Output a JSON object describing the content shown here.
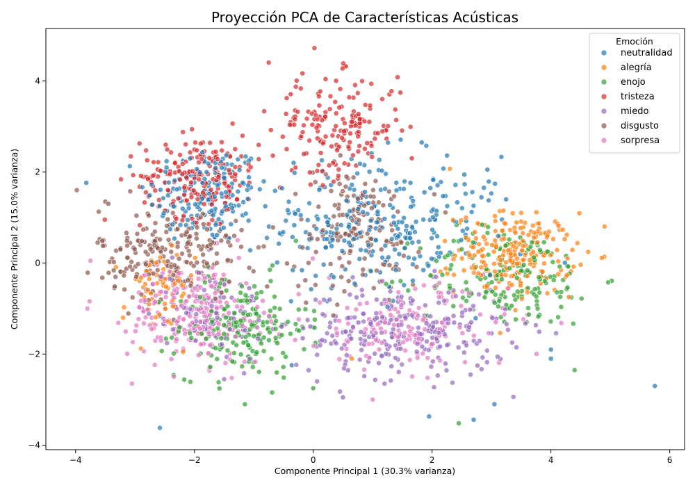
{
  "chart_data": {
    "type": "scatter",
    "title": "Proyección PCA de Características Acústicas",
    "xlabel": "Componente Principal 1 (30.3% varianza)",
    "ylabel": "Componente Principal 2 (15.0% varianza)",
    "xlim": [
      -4.5,
      6.25
    ],
    "ylim": [
      -4.1,
      5.15
    ],
    "xticks": [
      -4,
      -2,
      0,
      2,
      4,
      6
    ],
    "yticks": [
      -4,
      -2,
      0,
      2,
      4
    ],
    "xtick_labels": [
      "−4",
      "−2",
      "0",
      "2",
      "4",
      "6"
    ],
    "ytick_labels": [
      "−4",
      "−2",
      "0",
      "2",
      "4"
    ],
    "grid": false,
    "legend": {
      "title": "Emoción",
      "position": "top-right"
    },
    "marker_alpha": 0.7,
    "series": [
      {
        "name": "neutralidad",
        "color": "#1f77b4",
        "clusters": [
          {
            "cx": -1.8,
            "cy": 1.5,
            "sx": 0.5,
            "sy": 0.55,
            "n": 170
          },
          {
            "cx": 0.8,
            "cy": 0.9,
            "sx": 0.75,
            "sy": 0.75,
            "n": 190
          },
          {
            "cx": 2.0,
            "cy": 0.8,
            "sx": 0.8,
            "sy": 0.7,
            "n": 80
          }
        ],
        "points": [
          [
            5.75,
            -2.7
          ],
          [
            -2.58,
            -3.62
          ],
          [
            1.95,
            -3.37
          ],
          [
            2.7,
            -3.44
          ],
          [
            3.05,
            -3.1
          ],
          [
            4.0,
            -1.9
          ],
          [
            4.0,
            -2.1
          ]
        ]
      },
      {
        "name": "alegría",
        "color": "#ff7f0e",
        "clusters": [
          {
            "cx": 3.4,
            "cy": 0.2,
            "sx": 0.5,
            "sy": 0.45,
            "n": 230
          },
          {
            "cx": -2.6,
            "cy": -0.6,
            "sx": 0.3,
            "sy": 0.45,
            "n": 60
          }
        ],
        "points": [
          [
            2.3,
            2.07
          ],
          [
            -3.2,
            -1.2
          ],
          [
            -2.9,
            -1.88
          ],
          [
            0.65,
            -2.1
          ]
        ]
      },
      {
        "name": "enojo",
        "color": "#2ca02c",
        "clusters": [
          {
            "cx": -1.2,
            "cy": -1.4,
            "sx": 0.55,
            "sy": 0.55,
            "n": 190
          },
          {
            "cx": 3.3,
            "cy": -0.3,
            "sx": 0.75,
            "sy": 0.55,
            "n": 170
          }
        ],
        "points": [
          [
            2.45,
            -3.52
          ],
          [
            4.4,
            -2.35
          ],
          [
            -1.15,
            -3.1
          ],
          [
            0.0,
            -2.75
          ]
        ]
      },
      {
        "name": "tristeza",
        "color": "#d62728",
        "clusters": [
          {
            "cx": -1.9,
            "cy": 1.9,
            "sx": 0.5,
            "sy": 0.45,
            "n": 200
          },
          {
            "cx": 0.4,
            "cy": 3.0,
            "sx": 0.55,
            "sy": 0.55,
            "n": 170
          }
        ],
        "points": [
          [
            0.02,
            4.72
          ],
          [
            -0.75,
            4.4
          ],
          [
            1.42,
            4.08
          ],
          [
            0.55,
            4.32
          ]
        ]
      },
      {
        "name": "miedo",
        "color": "#9467bd",
        "clusters": [
          {
            "cx": 1.5,
            "cy": -1.5,
            "sx": 0.9,
            "sy": 0.5,
            "n": 260
          },
          {
            "cx": -1.8,
            "cy": -1.0,
            "sx": 0.5,
            "sy": 0.45,
            "n": 80
          }
        ],
        "points": [
          [
            0.5,
            -2.95
          ],
          [
            -1.5,
            -2.55
          ],
          [
            1.2,
            -2.65
          ]
        ]
      },
      {
        "name": "disgusto",
        "color": "#8c564b",
        "clusters": [
          {
            "cx": -2.4,
            "cy": 0.2,
            "sx": 0.6,
            "sy": 0.5,
            "n": 210
          },
          {
            "cx": 0.7,
            "cy": 0.7,
            "sx": 0.55,
            "sy": 0.7,
            "n": 150
          }
        ],
        "points": [
          [
            -3.98,
            1.6
          ],
          [
            -3.5,
            1.35
          ],
          [
            -3.45,
            1.3
          ]
        ]
      },
      {
        "name": "sorpresa",
        "color": "#e377c2",
        "clusters": [
          {
            "cx": -2.0,
            "cy": -1.1,
            "sx": 0.55,
            "sy": 0.55,
            "n": 230
          },
          {
            "cx": 1.6,
            "cy": -1.4,
            "sx": 0.85,
            "sy": 0.45,
            "n": 140
          }
        ],
        "points": [
          [
            -3.05,
            -2.65
          ],
          [
            -3.8,
            -1.0
          ],
          [
            -3.75,
            0.05
          ],
          [
            1.0,
            -3.0
          ]
        ]
      }
    ]
  }
}
